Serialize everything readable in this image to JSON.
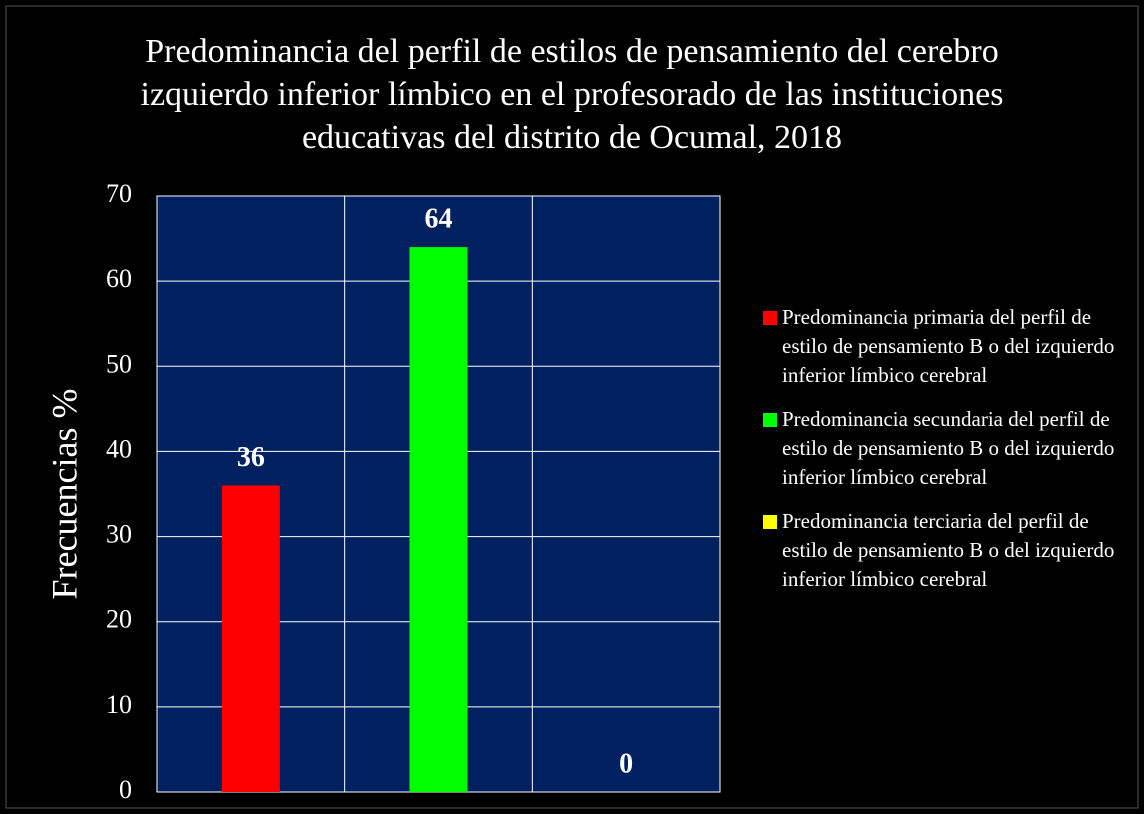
{
  "chart_data": {
    "type": "bar",
    "title": "Predominancia del perfil de estilos de pensamiento del cerebro izquierdo inferior límbico en el profesorado de las instituciones educativas del distrito de Ocumal, 2018",
    "y_label": "Frecuencias %",
    "categories": [
      "Predominancia primaria del perfil de estilo de pensamiento B o del izquierdo inferior  límbico cerebral",
      "Predominancia secundaria del perfil de estilo de pensamiento B o del izquierdo inferior límbico cerebral",
      "Predominancia terciaria del perfil de estilo de pensamiento B o del izquierdo inferior límbico cerebral"
    ],
    "values": [
      36,
      64,
      0
    ],
    "colors": [
      "#ff0000",
      "#00ff00",
      "#ffff00"
    ],
    "ylim": [
      0,
      70
    ],
    "yticks": [
      0,
      10,
      20,
      30,
      40,
      50,
      60,
      70
    ],
    "grid": true,
    "legend": "right"
  }
}
